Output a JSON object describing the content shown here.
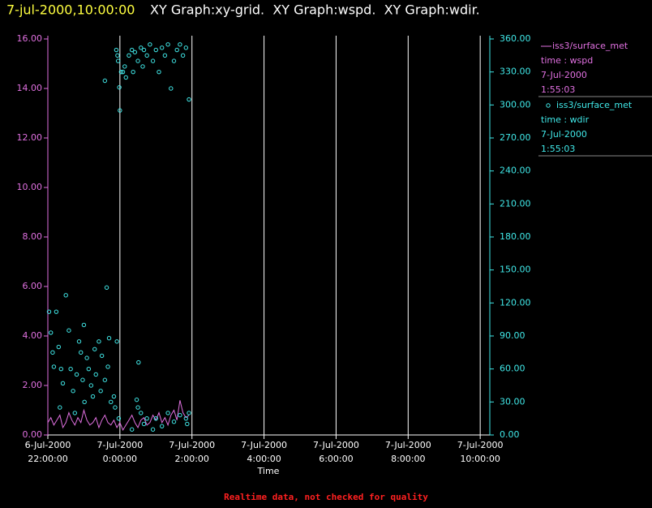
{
  "chart_data": {
    "type": "line",
    "title": "7-jul-2000,10:00:00",
    "subtitle": "XY Graph:xy-grid.  XY Graph:wspd.  XY Graph:wdir.",
    "x_label": "Time",
    "footer": "Realtime data, not checked for quality",
    "xlim": [
      "2000-07-06T22:00",
      "2000-07-07T10:16"
    ],
    "xticks": [
      {
        "value": "2000-07-06T22:00",
        "label": [
          "6-Jul-2000",
          "22:00:00"
        ]
      },
      {
        "value": "2000-07-07T00:00",
        "label": [
          "7-Jul-2000",
          "0:00:00"
        ]
      },
      {
        "value": "2000-07-07T02:00",
        "label": [
          "7-Jul-2000",
          "2:00:00"
        ]
      },
      {
        "value": "2000-07-07T04:00",
        "label": [
          "7-Jul-2000",
          "4:00:00"
        ]
      },
      {
        "value": "2000-07-07T06:00",
        "label": [
          "7-Jul-2000",
          "6:00:00"
        ]
      },
      {
        "value": "2000-07-07T08:00",
        "label": [
          "7-Jul-2000",
          "8:00:00"
        ]
      },
      {
        "value": "2000-07-07T10:00",
        "label": [
          "7-Jul-2000",
          "10:00:00"
        ]
      }
    ],
    "ylim": [
      0,
      16
    ],
    "yticks": [
      {
        "value": 0,
        "label": "0.00"
      },
      {
        "value": 2,
        "label": "2.00"
      },
      {
        "value": 4,
        "label": "4.00"
      },
      {
        "value": 6,
        "label": "6.00"
      },
      {
        "value": 8,
        "label": "8.00"
      },
      {
        "value": 10,
        "label": "10.00"
      },
      {
        "value": 12,
        "label": "12.00"
      },
      {
        "value": 14,
        "label": "14.00"
      },
      {
        "value": 16,
        "label": "16.00"
      }
    ],
    "y2lim": [
      0,
      360
    ],
    "y2ticks": [
      {
        "value": 0,
        "label": "0.00"
      },
      {
        "value": 30,
        "label": "30.00"
      },
      {
        "value": 60,
        "label": "60.00"
      },
      {
        "value": 90,
        "label": "90.00"
      },
      {
        "value": 120,
        "label": "120.00"
      },
      {
        "value": 150,
        "label": "150.00"
      },
      {
        "value": 180,
        "label": "180.00"
      },
      {
        "value": 210,
        "label": "210.00"
      },
      {
        "value": 240,
        "label": "240.00"
      },
      {
        "value": 270,
        "label": "270.00"
      },
      {
        "value": 300,
        "label": "300.00"
      },
      {
        "value": 330,
        "label": "330.00"
      },
      {
        "value": 360,
        "label": "360.00"
      }
    ],
    "grid": true,
    "series": [
      {
        "name": "iss3/surface_met",
        "color": "#e070e0",
        "legend_lines": [
          "time : wspd",
          "7-Jul-2000",
          "1:55:03"
        ],
        "x": [
          "2000-07-06T22:00",
          "2000-07-06T22:05",
          "2000-07-06T22:10",
          "2000-07-06T22:15",
          "2000-07-06T22:20",
          "2000-07-06T22:25",
          "2000-07-06T22:30",
          "2000-07-06T22:35",
          "2000-07-06T22:40",
          "2000-07-06T22:45",
          "2000-07-06T22:50",
          "2000-07-06T22:55",
          "2000-07-06T23:00",
          "2000-07-06T23:05",
          "2000-07-06T23:10",
          "2000-07-06T23:15",
          "2000-07-06T23:20",
          "2000-07-06T23:25",
          "2000-07-06T23:30",
          "2000-07-06T23:35",
          "2000-07-06T23:40",
          "2000-07-06T23:45",
          "2000-07-06T23:50",
          "2000-07-06T23:55",
          "2000-07-07T00:00",
          "2000-07-07T00:05",
          "2000-07-07T00:10",
          "2000-07-07T00:15",
          "2000-07-07T00:20",
          "2000-07-07T00:25",
          "2000-07-07T00:30",
          "2000-07-07T00:35",
          "2000-07-07T00:40",
          "2000-07-07T00:45",
          "2000-07-07T00:50",
          "2000-07-07T00:55",
          "2000-07-07T01:00",
          "2000-07-07T01:05",
          "2000-07-07T01:10",
          "2000-07-07T01:15",
          "2000-07-07T01:20",
          "2000-07-07T01:25",
          "2000-07-07T01:30",
          "2000-07-07T01:35",
          "2000-07-07T01:40",
          "2000-07-07T01:45",
          "2000-07-07T01:50",
          "2000-07-07T01:55"
        ],
        "values": [
          0.5,
          0.7,
          0.4,
          0.6,
          0.8,
          0.3,
          0.5,
          0.9,
          0.6,
          0.4,
          0.7,
          0.5,
          1.0,
          0.6,
          0.4,
          0.5,
          0.7,
          0.3,
          0.6,
          0.8,
          0.5,
          0.4,
          0.6,
          0.3,
          0.5,
          0.2,
          0.4,
          0.6,
          0.8,
          0.5,
          0.3,
          0.6,
          0.7,
          0.4,
          0.5,
          0.8,
          0.6,
          0.9,
          0.5,
          0.7,
          0.4,
          0.8,
          1.0,
          0.6,
          1.4,
          0.9,
          0.7,
          0.8
        ]
      },
      {
        "name": "iss3/surface_met",
        "type": "scatter",
        "axis": "y2",
        "color": "#40e8e8",
        "legend_lines": [
          "time : wdir",
          "7-Jul-2000",
          "1:55:03"
        ],
        "x": [
          "2000-07-06T22:02",
          "2000-07-06T22:05",
          "2000-07-06T22:08",
          "2000-07-06T22:10",
          "2000-07-06T22:14",
          "2000-07-06T22:18",
          "2000-07-06T22:22",
          "2000-07-06T22:25",
          "2000-07-06T22:30",
          "2000-07-06T22:35",
          "2000-07-06T22:38",
          "2000-07-06T22:42",
          "2000-07-06T22:48",
          "2000-07-06T22:52",
          "2000-07-06T22:55",
          "2000-07-06T23:00",
          "2000-07-06T23:05",
          "2000-07-06T23:08",
          "2000-07-06T23:12",
          "2000-07-06T23:15",
          "2000-07-06T23:20",
          "2000-07-06T23:25",
          "2000-07-06T23:30",
          "2000-07-06T23:35",
          "2000-07-06T23:38",
          "2000-07-06T23:42",
          "2000-07-06T23:45",
          "2000-07-06T23:50",
          "2000-07-06T23:52",
          "2000-07-06T23:55",
          "2000-07-06T23:58",
          "2000-07-06T22:20",
          "2000-07-06T22:45",
          "2000-07-06T23:01",
          "2000-07-06T23:28",
          "2000-07-06T23:40",
          "2000-07-06T22:58",
          "2000-07-06T23:18",
          "2000-07-06T23:54",
          "2000-07-06T23:56",
          "2000-07-06T23:57",
          "2000-07-06T23:59",
          "2000-07-07T00:00",
          "2000-07-07T00:02",
          "2000-07-07T00:05",
          "2000-07-07T00:08",
          "2000-07-07T00:10",
          "2000-07-07T00:15",
          "2000-07-07T00:20",
          "2000-07-07T00:25",
          "2000-07-07T00:30",
          "2000-07-07T00:35",
          "2000-07-07T00:40",
          "2000-07-07T00:45",
          "2000-07-07T00:50",
          "2000-07-07T00:55",
          "2000-07-07T01:00",
          "2000-07-07T01:05",
          "2000-07-07T01:10",
          "2000-07-07T01:15",
          "2000-07-07T01:20",
          "2000-07-07T01:25",
          "2000-07-07T01:30",
          "2000-07-07T01:35",
          "2000-07-07T01:40",
          "2000-07-07T01:45",
          "2000-07-07T01:50",
          "2000-07-07T01:55",
          "2000-07-06T23:35",
          "2000-07-07T00:38",
          "2000-07-07T00:22",
          "2000-07-07T00:28",
          "2000-07-07T00:30",
          "2000-07-07T00:35",
          "2000-07-07T00:40",
          "2000-07-07T00:45",
          "2000-07-07T00:31",
          "2000-07-07T00:55",
          "2000-07-07T01:00",
          "2000-07-07T01:10",
          "2000-07-07T01:20",
          "2000-07-07T01:30",
          "2000-07-07T01:40",
          "2000-07-07T01:50",
          "2000-07-07T01:52",
          "2000-07-07T01:55",
          "2000-07-07T00:20"
        ],
        "values": [
          112,
          93,
          75,
          62,
          112,
          80,
          60,
          47,
          127,
          95,
          60,
          40,
          55,
          85,
          75,
          100,
          70,
          60,
          45,
          35,
          55,
          85,
          72,
          50,
          134,
          88,
          30,
          35,
          25,
          85,
          15,
          25,
          20,
          30,
          40,
          62,
          50,
          78,
          350,
          345,
          340,
          316,
          295,
          330,
          330,
          335,
          325,
          345,
          350,
          348,
          340,
          352,
          350,
          345,
          355,
          340,
          350,
          330,
          352,
          345,
          355,
          315,
          340,
          350,
          355,
          345,
          352,
          305,
          322,
          335,
          330,
          32,
          25,
          20,
          10,
          15,
          66,
          5,
          15,
          8,
          20,
          12,
          18,
          15,
          10,
          20,
          5
        ]
      }
    ]
  }
}
